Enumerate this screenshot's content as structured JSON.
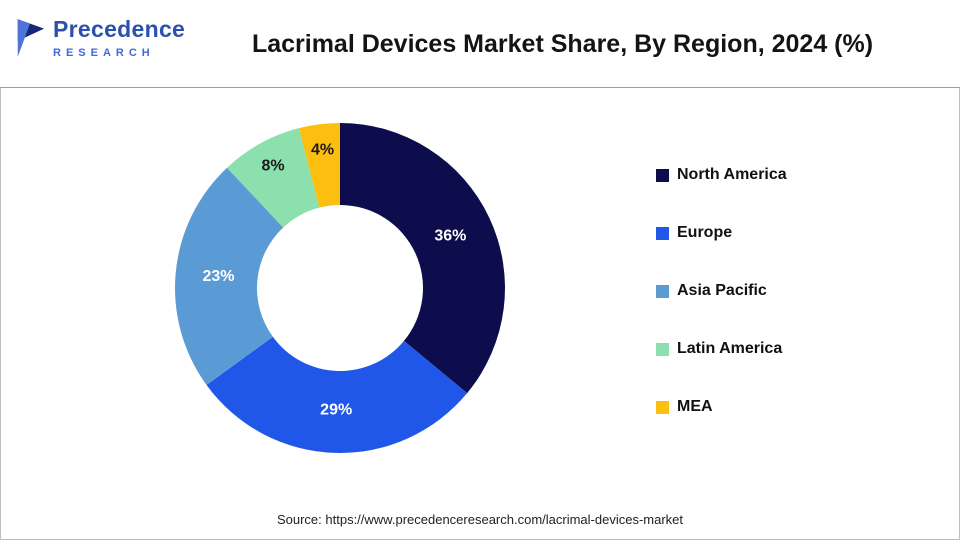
{
  "header": {
    "title": "Lacrimal Devices Market Share, By Region, 2024 (%)",
    "logo": {
      "line1": "Precedence",
      "line2": "RESEARCH"
    }
  },
  "chart_data": {
    "type": "pie",
    "subtype": "donut",
    "title": "Lacrimal Devices Market Share, By Region, 2024 (%)",
    "categories": [
      "North America",
      "Europe",
      "Asia Pacific",
      "Latin America",
      "MEA"
    ],
    "values": [
      36,
      29,
      23,
      8,
      4
    ],
    "unit": "%",
    "colors": [
      "#0d0d4d",
      "#2057e8",
      "#5b9bd5",
      "#8ce0ae",
      "#fdbf0f"
    ],
    "label_colors": [
      "#ffffff",
      "#ffffff",
      "#ffffff",
      "#1a1a1a",
      "#1a1a1a"
    ],
    "start_angle_deg": 0,
    "direction": "clockwise",
    "legend_position": "right",
    "grid": false
  },
  "footer": {
    "source": "Source: https://www.precedenceresearch.com/lacrimal-devices-market"
  }
}
